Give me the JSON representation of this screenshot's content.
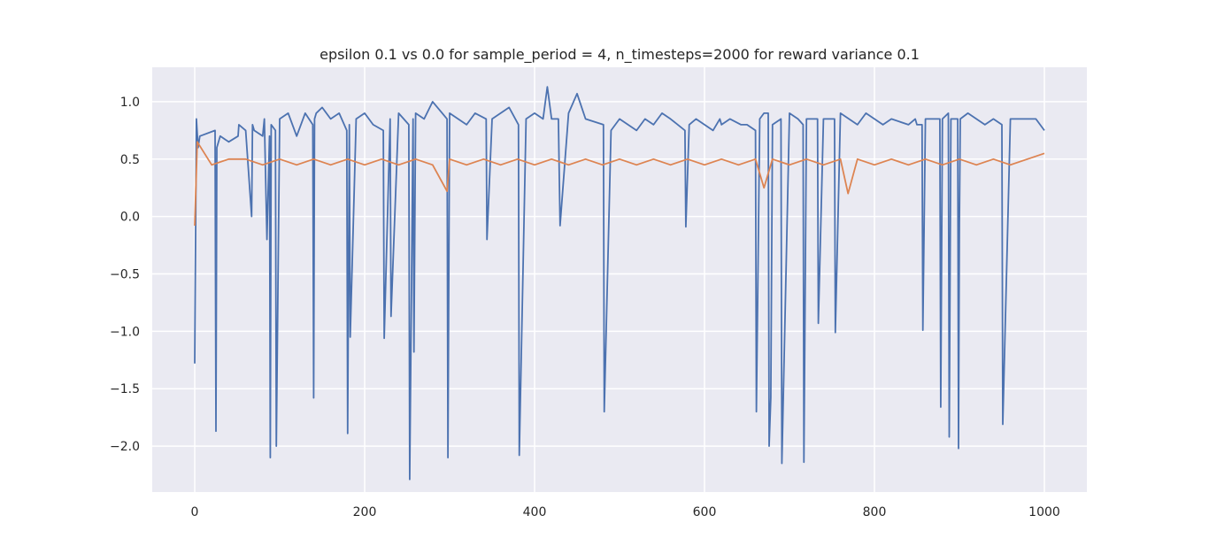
{
  "chart_data": {
    "type": "line",
    "title": "epsilon 0.1 vs 0.0 for sample_period = 4, n_timesteps=2000 for reward variance 0.1",
    "xlabel": "",
    "ylabel": "",
    "xlim": [
      -50,
      1050
    ],
    "ylim": [
      -2.4,
      1.3
    ],
    "xticks": [
      0,
      200,
      400,
      600,
      800,
      1000
    ],
    "xtick_labels": [
      "0",
      "200",
      "400",
      "600",
      "800",
      "1000"
    ],
    "yticks": [
      1.0,
      0.5,
      0.0,
      -0.5,
      -1.0,
      -1.5,
      -2.0
    ],
    "ytick_labels": [
      "1.0",
      "0.5",
      "0.0",
      "−0.5",
      "−1.0",
      "−1.5",
      "−2.0"
    ],
    "grid": true,
    "legend": false,
    "series": [
      {
        "color": "#4c72b0",
        "x": [
          0,
          2,
          4,
          6,
          24,
          25,
          26,
          30,
          40,
          51,
          52,
          60,
          67,
          68,
          70,
          80,
          82,
          85,
          88,
          89,
          90,
          95,
          96,
          100,
          110,
          120,
          130,
          139,
          140,
          141,
          143,
          150,
          160,
          170,
          179,
          180,
          182,
          183,
          190,
          200,
          210,
          222,
          223,
          230,
          231,
          240,
          252,
          253,
          257,
          258,
          260,
          270,
          280,
          297,
          298,
          300,
          310,
          320,
          330,
          343,
          344,
          350,
          360,
          370,
          381,
          382,
          390,
          400,
          410,
          415,
          420,
          428,
          430,
          440,
          450,
          460,
          481,
          482,
          490,
          500,
          510,
          520,
          530,
          540,
          550,
          560,
          577,
          578,
          582,
          590,
          600,
          610,
          618,
          620,
          630,
          643,
          650,
          660,
          661,
          665,
          670,
          675,
          676,
          678,
          680,
          690,
          691,
          700,
          710,
          716,
          717,
          720,
          733,
          734,
          740,
          753,
          754,
          760,
          770,
          780,
          790,
          800,
          810,
          820,
          840,
          848,
          850,
          856,
          857,
          860,
          870,
          877,
          878,
          880,
          887,
          888,
          890,
          898,
          899,
          900,
          901,
          910,
          920,
          930,
          940,
          950,
          951,
          960,
          970,
          980,
          990,
          1000
        ],
        "y": [
          -1.28,
          0.85,
          0.6,
          0.7,
          0.75,
          -1.87,
          0.6,
          0.7,
          0.65,
          0.7,
          0.8,
          0.75,
          0.0,
          0.8,
          0.75,
          0.7,
          0.85,
          -0.2,
          0.7,
          -2.1,
          0.8,
          0.75,
          -2.0,
          0.85,
          0.9,
          0.7,
          0.9,
          0.8,
          -1.58,
          0.85,
          0.9,
          0.95,
          0.85,
          0.9,
          0.75,
          -1.89,
          0.8,
          -1.05,
          0.85,
          0.9,
          0.8,
          0.75,
          -1.06,
          0.85,
          -0.87,
          0.9,
          0.8,
          -2.29,
          0.85,
          -1.18,
          0.9,
          0.85,
          1.0,
          0.85,
          -2.1,
          0.9,
          0.85,
          0.8,
          0.9,
          0.85,
          -0.2,
          0.85,
          0.9,
          0.95,
          0.8,
          -2.08,
          0.85,
          0.9,
          0.85,
          1.13,
          0.85,
          0.85,
          -0.08,
          0.9,
          1.07,
          0.85,
          0.8,
          -1.7,
          0.75,
          0.85,
          0.8,
          0.75,
          0.85,
          0.8,
          0.9,
          0.85,
          0.75,
          -0.09,
          0.8,
          0.85,
          0.8,
          0.75,
          0.85,
          0.8,
          0.85,
          0.8,
          0.8,
          0.75,
          -1.7,
          0.85,
          0.9,
          0.9,
          -2.0,
          -1.58,
          0.8,
          0.85,
          -2.15,
          0.9,
          0.85,
          0.8,
          -2.14,
          0.85,
          0.85,
          -0.93,
          0.85,
          0.85,
          -1.01,
          0.9,
          0.85,
          0.8,
          0.9,
          0.85,
          0.8,
          0.85,
          0.8,
          0.85,
          0.8,
          0.8,
          -0.99,
          0.85,
          0.85,
          0.85,
          -1.66,
          0.85,
          0.9,
          -1.92,
          0.85,
          0.85,
          -2.02,
          -0.05,
          0.85,
          0.9,
          0.85,
          0.8,
          0.85,
          0.8,
          -1.81,
          0.85,
          0.85,
          0.85,
          0.85,
          0.75
        ]
      },
      {
        "color": "#dd8452",
        "x": [
          0,
          3,
          20,
          40,
          60,
          80,
          100,
          120,
          140,
          160,
          180,
          200,
          220,
          240,
          260,
          280,
          297,
          300,
          320,
          340,
          360,
          380,
          400,
          420,
          440,
          460,
          480,
          500,
          520,
          540,
          560,
          580,
          600,
          620,
          640,
          660,
          670,
          680,
          700,
          720,
          740,
          760,
          769,
          780,
          800,
          820,
          840,
          860,
          880,
          900,
          920,
          940,
          960,
          980,
          1000
        ],
        "y": [
          -0.08,
          0.65,
          0.45,
          0.5,
          0.5,
          0.45,
          0.5,
          0.45,
          0.5,
          0.45,
          0.5,
          0.45,
          0.5,
          0.45,
          0.5,
          0.45,
          0.22,
          0.5,
          0.45,
          0.5,
          0.45,
          0.5,
          0.45,
          0.5,
          0.45,
          0.5,
          0.45,
          0.5,
          0.45,
          0.5,
          0.45,
          0.5,
          0.45,
          0.5,
          0.45,
          0.5,
          0.25,
          0.5,
          0.45,
          0.5,
          0.45,
          0.5,
          0.2,
          0.5,
          0.45,
          0.5,
          0.45,
          0.5,
          0.45,
          0.5,
          0.45,
          0.5,
          0.45,
          0.5,
          0.55
        ]
      }
    ]
  }
}
